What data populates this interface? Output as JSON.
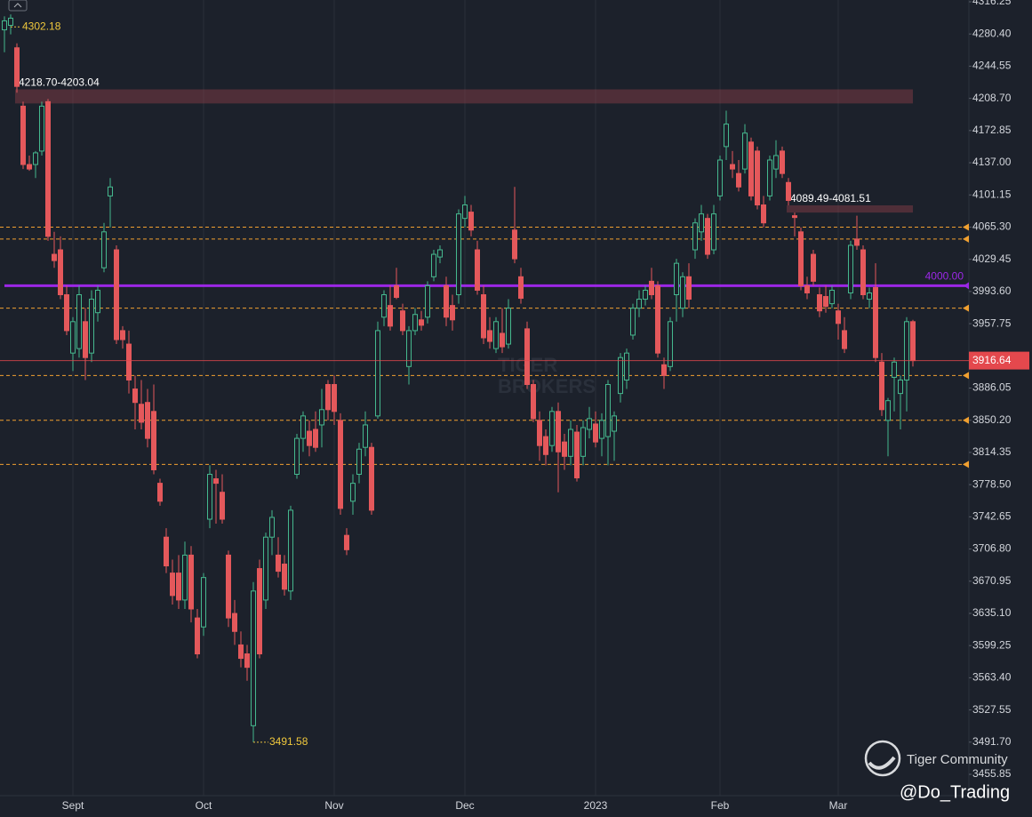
{
  "chart_data": {
    "type": "candlestick",
    "up_color": "#45b88e",
    "down_color": "#e4585b",
    "level_color": "#f0a030",
    "price_color": "#e4484d",
    "ylim": [
      3455.85,
      4316.25
    ],
    "yticks": [
      4316.25,
      {
        "value": 4280.4,
        "label": "4280.40"
      },
      4244.55,
      {
        "value": 4208.7,
        "label": "4208.70"
      },
      4172.85,
      {
        "value": 4137.0,
        "label": "4137.00"
      },
      4101.15,
      {
        "value": 4065.3,
        "label": "4065.30"
      },
      4029.45,
      {
        "value": 3993.6,
        "label": "3993.60"
      },
      3957.75,
      3886.05,
      {
        "value": 3850.2,
        "label": "3850.20"
      },
      3814.35,
      {
        "value": 3778.5,
        "label": "3778.50"
      },
      3742.65,
      {
        "value": 3706.8,
        "label": "3706.80"
      },
      3670.95,
      {
        "value": 3635.1,
        "label": "3635.10"
      },
      3599.25,
      {
        "value": 3563.4,
        "label": "3563.40"
      },
      3527.55,
      {
        "value": 3491.7,
        "label": "3491.70"
      },
      3455.85
    ],
    "xticks": [
      {
        "value": 11,
        "label": "Sept"
      },
      {
        "value": 32,
        "label": "Oct"
      },
      {
        "value": 53,
        "label": "Nov"
      },
      {
        "value": 74,
        "label": "Dec"
      },
      {
        "value": 95,
        "label": "2023"
      },
      {
        "value": 115,
        "label": "Feb"
      },
      {
        "value": 134,
        "label": "Mar"
      }
    ],
    "grid": "x",
    "hline": {
      "value": 4000,
      "label": "4000.00",
      "color": "#9b27e6"
    },
    "levels": [
      4065.3,
      4052,
      3975,
      3900,
      3850.2,
      3801
    ],
    "zones": [
      {
        "start": 2,
        "high": 4218.7,
        "low": 4203.04,
        "label": "4218.70-4203.04"
      },
      {
        "start": 126,
        "high": 4089.49,
        "low": 4081.51,
        "label": "4089.49-4081.51"
      }
    ],
    "watermark": [
      "TIGER",
      "BROKERS"
    ],
    "brand": "Tiger Community",
    "author": "@Do_Trading",
    "candles": [
      [
        4285,
        4300,
        4260,
        4295
      ],
      [
        4290,
        4302.18,
        4280,
        4298
      ],
      [
        4265,
        4270,
        4215,
        4222
      ],
      [
        4200,
        4205,
        4130,
        4135
      ],
      [
        4135,
        4145,
        4128,
        4130
      ],
      [
        4135,
        4150,
        4120,
        4148
      ],
      [
        4150,
        4205,
        4145,
        4200
      ],
      [
        4205,
        4208,
        4050,
        4055
      ],
      [
        4035,
        4060,
        4020,
        4028
      ],
      [
        4040,
        4055,
        3985,
        3990
      ],
      [
        3990,
        4000,
        3945,
        3950
      ],
      [
        3925,
        3965,
        3905,
        3960
      ],
      [
        3930,
        4000,
        3920,
        3990
      ],
      [
        3960,
        3975,
        3895,
        3920
      ],
      [
        3925,
        3995,
        3915,
        3985
      ],
      [
        3970,
        4000,
        3960,
        3995
      ],
      [
        4020,
        4070,
        4015,
        4060
      ],
      [
        4100,
        4120,
        4065,
        4110
      ],
      [
        4040,
        4045,
        3935,
        3940
      ],
      [
        3950,
        3955,
        3930,
        3940
      ],
      [
        3935,
        3950,
        3880,
        3895
      ],
      [
        3885,
        3900,
        3840,
        3870
      ],
      [
        3868,
        3895,
        3840,
        3848
      ],
      [
        3870,
        3885,
        3820,
        3830
      ],
      [
        3860,
        3890,
        3790,
        3795
      ],
      [
        3780,
        3785,
        3755,
        3760
      ],
      [
        3720,
        3730,
        3680,
        3688
      ],
      [
        3680,
        3695,
        3645,
        3655
      ],
      [
        3680,
        3700,
        3640,
        3650
      ],
      [
        3650,
        3715,
        3640,
        3700
      ],
      [
        3700,
        3710,
        3625,
        3640
      ],
      [
        3630,
        3640,
        3585,
        3590
      ],
      [
        3620,
        3680,
        3610,
        3675
      ],
      [
        3740,
        3800,
        3730,
        3790
      ],
      [
        3785,
        3795,
        3735,
        3780
      ],
      [
        3770,
        3790,
        3735,
        3740
      ],
      [
        3700,
        3705,
        3620,
        3630
      ],
      [
        3635,
        3650,
        3600,
        3615
      ],
      [
        3600,
        3615,
        3575,
        3585
      ],
      [
        3590,
        3600,
        3560,
        3575
      ],
      [
        3510,
        3670,
        3491.58,
        3660
      ],
      [
        3685,
        3695,
        3585,
        3590
      ],
      [
        3650,
        3725,
        3640,
        3720
      ],
      [
        3720,
        3750,
        3700,
        3742
      ],
      [
        3700,
        3720,
        3675,
        3682
      ],
      [
        3690,
        3700,
        3655,
        3662
      ],
      [
        3660,
        3755,
        3650,
        3750
      ],
      [
        3790,
        3835,
        3785,
        3830
      ],
      [
        3830,
        3860,
        3815,
        3855
      ],
      [
        3838,
        3850,
        3810,
        3822
      ],
      [
        3840,
        3860,
        3815,
        3820
      ],
      [
        3845,
        3885,
        3820,
        3862
      ],
      [
        3890,
        3895,
        3850,
        3862
      ],
      [
        3890,
        3900,
        3845,
        3860
      ],
      [
        3850,
        3858,
        3745,
        3752
      ],
      [
        3722,
        3730,
        3700,
        3706
      ],
      [
        3760,
        3790,
        3745,
        3780
      ],
      [
        3790,
        3825,
        3780,
        3818
      ],
      [
        3820,
        3860,
        3810,
        3845
      ],
      [
        3820,
        3825,
        3745,
        3750
      ],
      [
        3855,
        3960,
        3852,
        3950
      ],
      [
        3965,
        3995,
        3955,
        3990
      ],
      [
        3978,
        4000,
        3950,
        3955
      ],
      [
        4000,
        4020,
        3985,
        3987
      ],
      [
        3972,
        3980,
        3945,
        3950
      ],
      [
        3910,
        3955,
        3890,
        3950
      ],
      [
        3950,
        3975,
        3945,
        3968
      ],
      [
        3962,
        3972,
        3950,
        3956
      ],
      [
        3965,
        4005,
        3958,
        4000
      ],
      [
        4010,
        4040,
        4005,
        4035
      ],
      [
        4032,
        4045,
        4025,
        4040
      ],
      [
        4000,
        4010,
        3955,
        3965
      ],
      [
        3978,
        3990,
        3950,
        3962
      ],
      [
        3990,
        4085,
        3980,
        4080
      ],
      [
        4075,
        4100,
        4065,
        4090
      ],
      [
        4082,
        4090,
        4055,
        4062
      ],
      [
        4040,
        4050,
        3990,
        3995
      ],
      [
        3990,
        4000,
        3935,
        3942
      ],
      [
        3950,
        3965,
        3930,
        3938
      ],
      [
        3930,
        3965,
        3925,
        3960
      ],
      [
        3947,
        3975,
        3925,
        3932
      ],
      [
        3935,
        3985,
        3930,
        3975
      ],
      [
        4062,
        4110,
        4025,
        4030
      ],
      [
        4010,
        4020,
        3980,
        3986
      ],
      [
        3952,
        3960,
        3885,
        3890
      ],
      [
        3890,
        3895,
        3848,
        3852
      ],
      [
        3850,
        3860,
        3805,
        3822
      ],
      [
        3832,
        3840,
        3800,
        3812
      ],
      [
        3822,
        3865,
        3815,
        3860
      ],
      [
        3860,
        3870,
        3770,
        3815
      ],
      [
        3826,
        3835,
        3795,
        3810
      ],
      [
        3810,
        3850,
        3800,
        3840
      ],
      [
        3837,
        3845,
        3782,
        3786
      ],
      [
        3810,
        3850,
        3800,
        3842
      ],
      [
        3840,
        3865,
        3830,
        3852
      ],
      [
        3846,
        3860,
        3820,
        3826
      ],
      [
        3830,
        3858,
        3810,
        3850
      ],
      [
        3832,
        3895,
        3800,
        3890
      ],
      [
        3838,
        3860,
        3805,
        3855
      ],
      [
        3880,
        3925,
        3870,
        3920
      ],
      [
        3895,
        3930,
        3885,
        3925
      ],
      [
        3945,
        3980,
        3940,
        3975
      ],
      [
        3975,
        3995,
        3965,
        3985
      ],
      [
        3985,
        4000,
        3978,
        3995
      ],
      [
        4005,
        4020,
        3985,
        3990
      ],
      [
        4000,
        4005,
        3920,
        3925
      ],
      [
        3912,
        3920,
        3885,
        3900
      ],
      [
        3910,
        3965,
        3905,
        3960
      ],
      [
        3990,
        4030,
        3960,
        4025
      ],
      [
        3975,
        4015,
        3965,
        4010
      ],
      [
        4010,
        4025,
        3975,
        3985
      ],
      [
        4040,
        4075,
        4030,
        4070
      ],
      [
        4060,
        4090,
        4050,
        4080
      ],
      [
        4075,
        4080,
        4030,
        4035
      ],
      [
        4040,
        4090,
        4035,
        4080
      ],
      [
        4100,
        4145,
        4095,
        4140
      ],
      [
        4155,
        4195,
        4140,
        4180
      ],
      [
        4135,
        4150,
        4120,
        4130
      ],
      [
        4125,
        4140,
        4105,
        4110
      ],
      [
        4130,
        4180,
        4125,
        4170
      ],
      [
        4160,
        4165,
        4095,
        4100
      ],
      [
        4150,
        4155,
        4085,
        4090
      ],
      [
        4090,
        4100,
        4065,
        4070
      ],
      [
        4100,
        4145,
        4095,
        4140
      ],
      [
        4130,
        4162,
        4120,
        4145
      ],
      [
        4150,
        4155,
        4120,
        4125
      ],
      [
        4115,
        4120,
        4089.49,
        4095
      ],
      [
        4078,
        4081.51,
        4055,
        4076
      ],
      [
        4060,
        4065,
        3995,
        4000
      ],
      [
        4000,
        4010,
        3985,
        3992
      ],
      [
        4035,
        4040,
        4000,
        4005
      ],
      [
        3990,
        3998,
        3965,
        3972
      ],
      [
        3988,
        4000,
        3970,
        3977
      ],
      [
        3980,
        4000,
        3975,
        3995
      ],
      [
        3972,
        3980,
        3940,
        3958
      ],
      [
        3950,
        3965,
        3925,
        3930
      ],
      [
        3992,
        4050,
        3985,
        4045
      ],
      [
        4052,
        4078,
        4040,
        4045
      ],
      [
        4040,
        4045,
        3985,
        3990
      ],
      [
        3985,
        3998,
        3975,
        3992
      ],
      [
        3998,
        4025,
        3915,
        3920
      ],
      [
        3915,
        3925,
        3855,
        3862
      ],
      [
        3850,
        3875,
        3810,
        3872
      ],
      [
        3898,
        3920,
        3860,
        3915
      ],
      [
        3880,
        3900,
        3840,
        3895
      ],
      [
        3895,
        3965,
        3860,
        3960
      ],
      [
        3960,
        3962,
        3910,
        3916.64
      ]
    ]
  }
}
